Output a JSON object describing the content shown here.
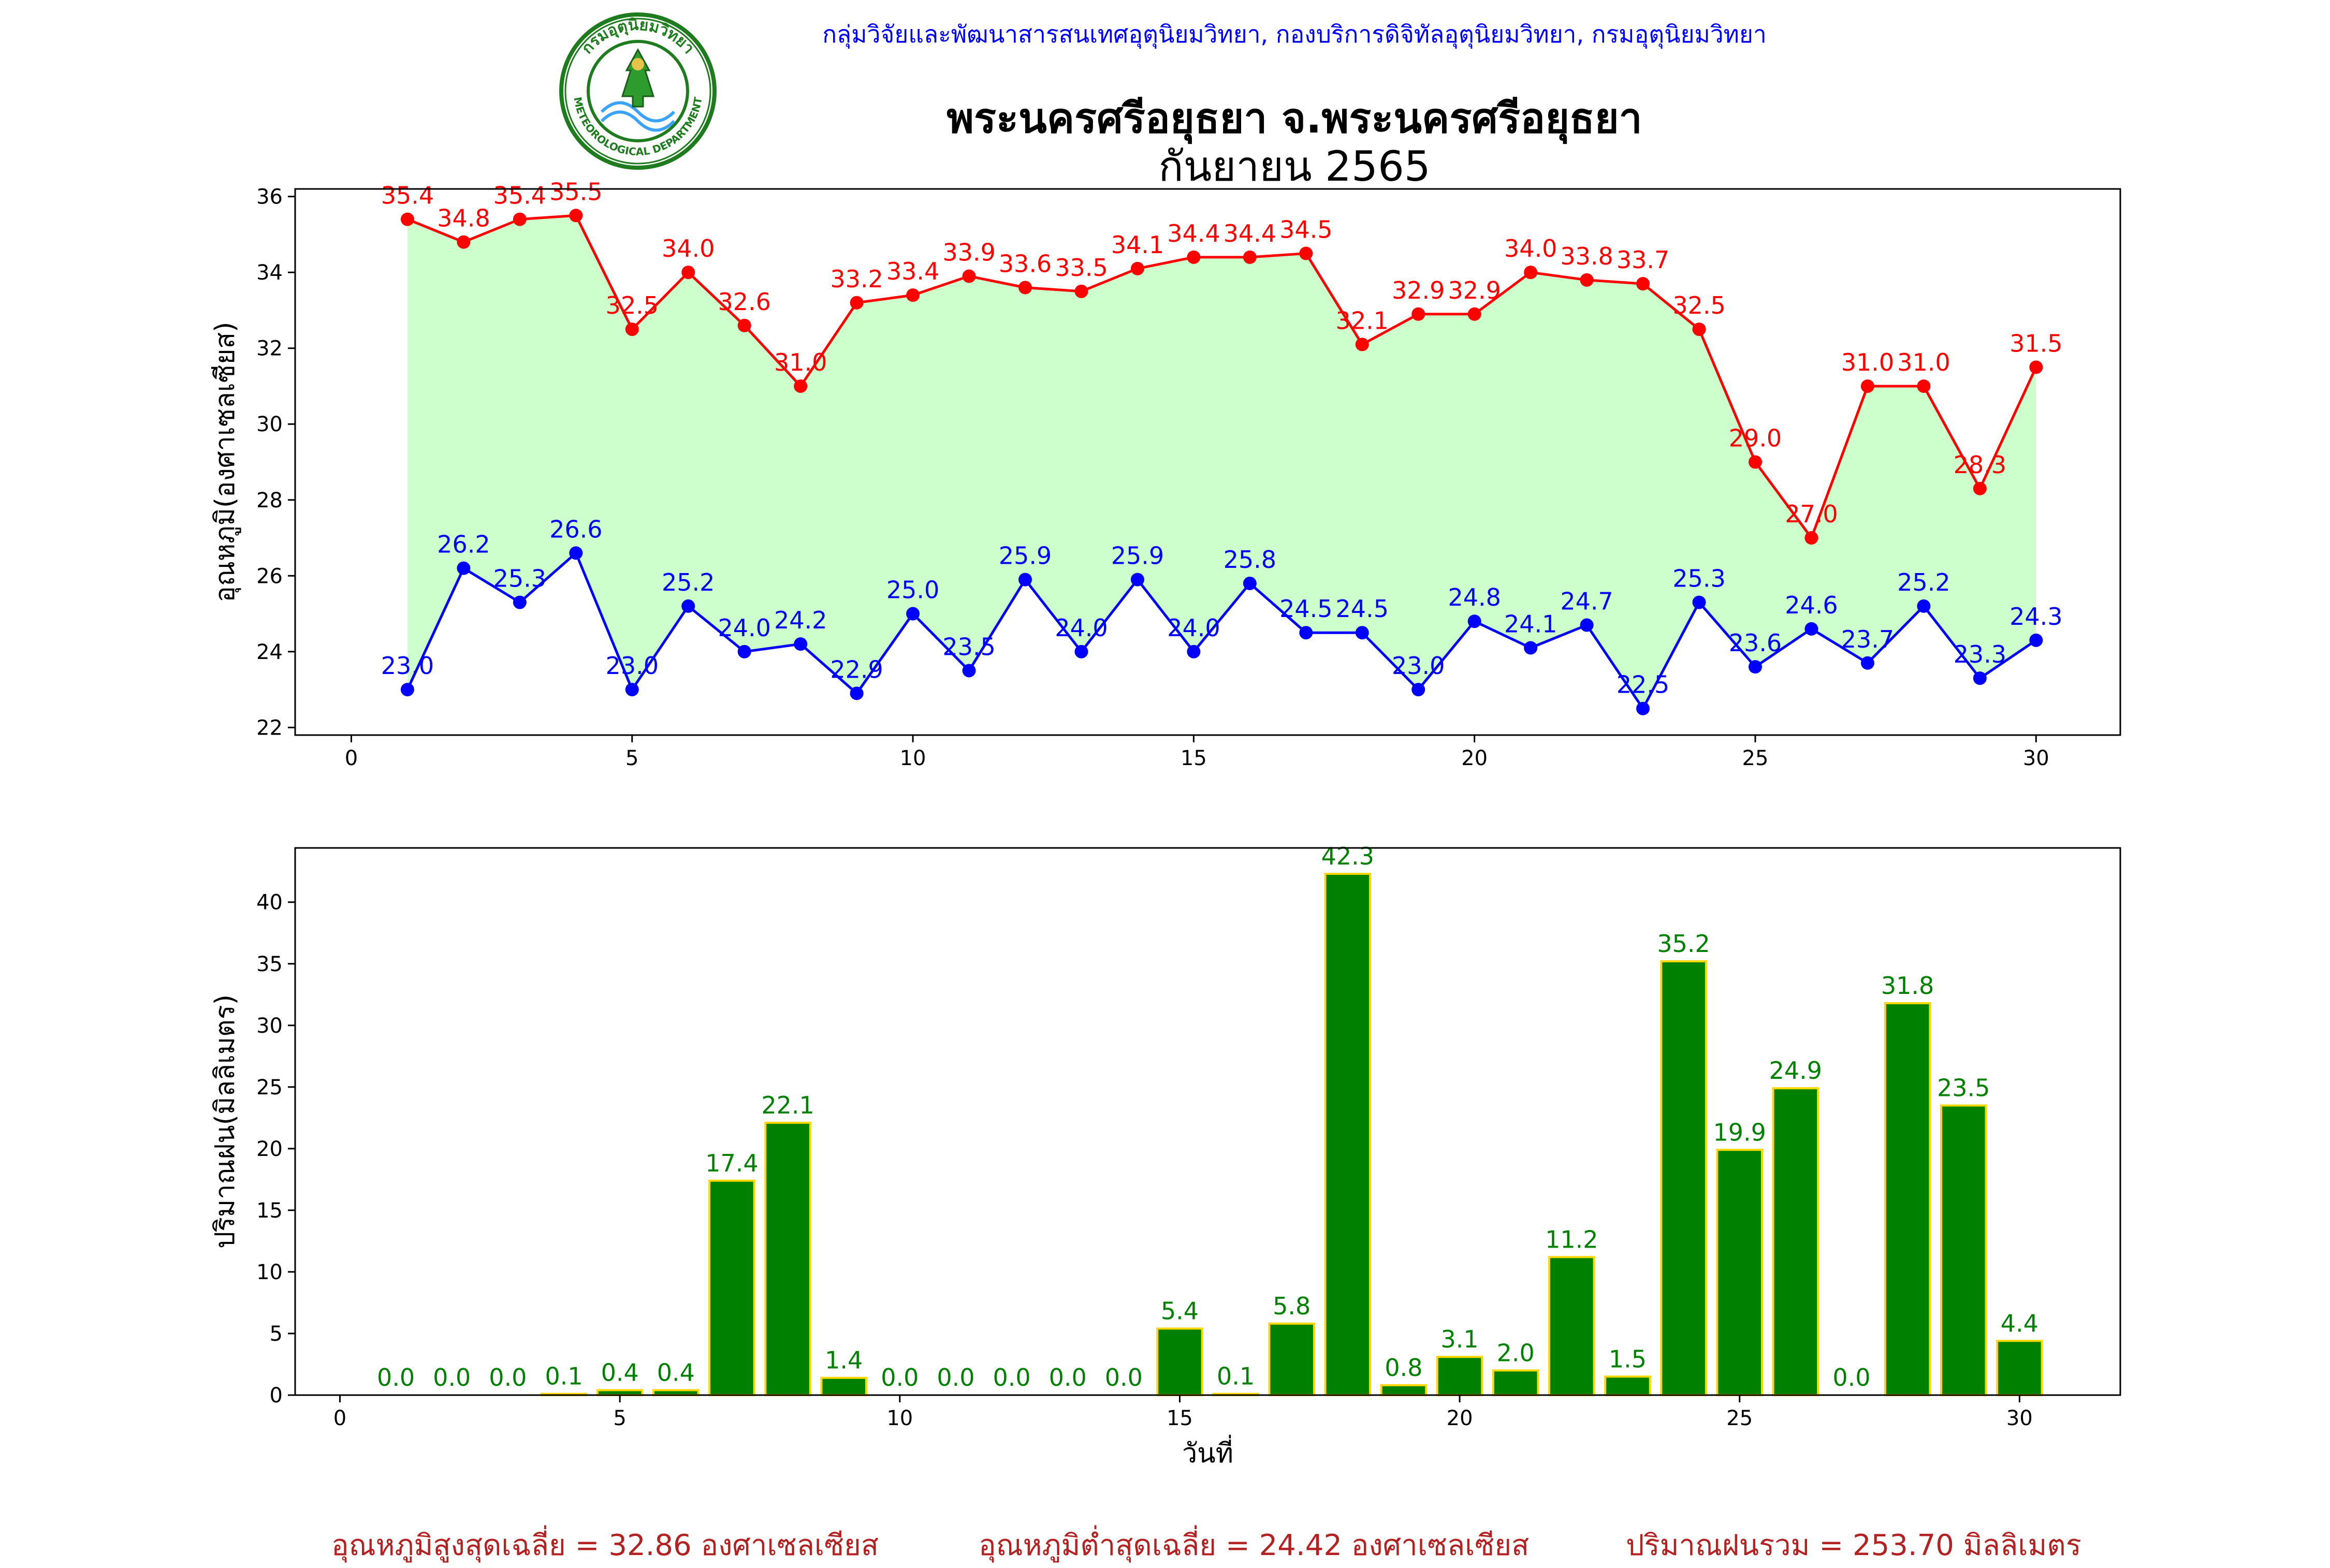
{
  "header": {
    "department": "กลุ่มวิจัยและพัฒนาสารสนเทศอุตุนิยมวิทยา, กองบริการดิจิทัลอุตุนิยมวิทยา, กรมอุตุนิยมวิทยา",
    "title_line1": "พระนครศรีอยุธยา จ.พระนครศรีอยุธยา",
    "title_line2": "กันยายน 2565",
    "logo_text_top": "กรมอุตุนิยมวิทยา",
    "logo_text_bottom": "METEOROLOGICAL DEPARTMENT"
  },
  "footer": {
    "avg_max": "อุณหภูมิสูงสุดเฉลี่ย = 32.86 องศาเซลเซียส",
    "avg_min": "อุณหภูมิต่ำสุดเฉลี่ย = 24.42 องศาเซลเซียส",
    "total_rain": "ปริมาณฝนรวม = 253.70 มิลลิเมตร"
  },
  "colors": {
    "max_line": "#ff0000",
    "min_line": "#0000ff",
    "fill": "#ccffcc",
    "rain_bar": "#008000",
    "rain_edge": "#ffd700",
    "footer_text": "#b22222"
  },
  "chart_data": [
    {
      "type": "line",
      "ylabel": "อุณหภูมิ(องศาเซลเซียส)",
      "xlim": [
        -1,
        31.5
      ],
      "ylim": [
        21.8,
        36.2
      ],
      "xticks": [
        0,
        5,
        10,
        15,
        20,
        25,
        30
      ],
      "yticks": [
        22,
        24,
        26,
        28,
        30,
        32,
        34,
        36
      ],
      "fill_between": true,
      "x": [
        1,
        2,
        3,
        4,
        5,
        6,
        7,
        8,
        9,
        10,
        11,
        12,
        13,
        14,
        15,
        16,
        17,
        18,
        19,
        20,
        21,
        22,
        23,
        24,
        25,
        26,
        27,
        28,
        29,
        30
      ],
      "series": [
        {
          "values": [
            35.4,
            34.8,
            35.4,
            35.5,
            32.5,
            34.0,
            32.6,
            31.0,
            33.2,
            33.4,
            33.9,
            33.6,
            33.5,
            34.1,
            34.4,
            34.4,
            34.5,
            32.1,
            32.9,
            32.9,
            34.0,
            33.8,
            33.7,
            32.5,
            29.0,
            27.0,
            31.0,
            31.0,
            28.3,
            31.5
          ]
        },
        {
          "values": [
            23.0,
            26.2,
            25.3,
            26.6,
            23.0,
            25.2,
            24.0,
            24.2,
            22.9,
            25.0,
            23.5,
            25.9,
            24.0,
            25.9,
            24.0,
            25.8,
            24.5,
            24.5,
            23.0,
            24.8,
            24.1,
            24.7,
            22.5,
            25.3,
            23.6,
            24.6,
            23.7,
            25.2,
            23.3,
            24.3
          ]
        }
      ]
    },
    {
      "type": "bar",
      "xlabel": "วันที่",
      "ylabel": "ปริมาณฝน(มิลลิเมตร)",
      "xlim": [
        -0.8,
        31.8
      ],
      "ylim": [
        0,
        44.4
      ],
      "xticks": [
        0,
        5,
        10,
        15,
        20,
        25,
        30
      ],
      "yticks": [
        0,
        5,
        10,
        15,
        20,
        25,
        30,
        35,
        40
      ],
      "x": [
        1,
        2,
        3,
        4,
        5,
        6,
        7,
        8,
        9,
        10,
        11,
        12,
        13,
        14,
        15,
        16,
        17,
        18,
        19,
        20,
        21,
        22,
        23,
        24,
        25,
        26,
        27,
        28,
        29,
        30
      ],
      "values": [
        0.0,
        0.0,
        0.0,
        0.1,
        0.4,
        0.4,
        17.4,
        22.1,
        1.4,
        0.0,
        0.0,
        0.0,
        0.0,
        0.0,
        5.4,
        0.1,
        5.8,
        42.3,
        0.8,
        3.1,
        2.0,
        11.2,
        1.5,
        35.2,
        19.9,
        24.9,
        0.0,
        31.8,
        23.5,
        4.4
      ]
    }
  ]
}
